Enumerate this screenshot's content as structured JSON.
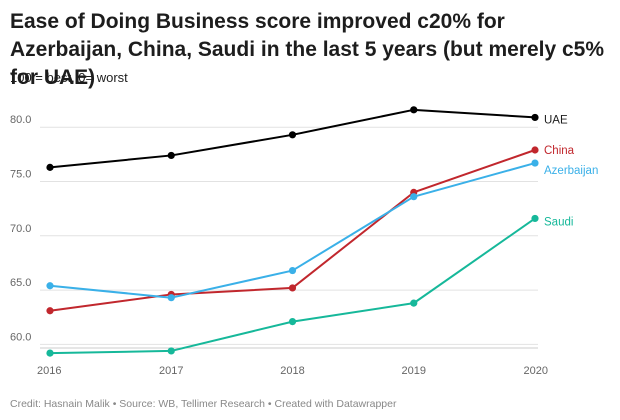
{
  "title": "Ease of Doing Business score improved c20% for Azerbaijan, China, Saudi in the last 5 years (but merely c5% for UAE)",
  "subtitle": "100 = best, 0= worst",
  "footer": "Credit: Hasnain Malik • Source: WB, Tellimer Research • Created with Datawrapper",
  "chart_data": {
    "type": "line",
    "title": "Ease of Doing Business score improved c20% for Azerbaijan, China, Saudi in the last 5 years (but merely c5% for UAE)",
    "subtitle": "100 = best, 0= worst",
    "x": [
      "2016",
      "2017",
      "2018",
      "2019",
      "2020"
    ],
    "ylim": [
      58.5,
      81.5
    ],
    "yticks": [
      "60.0",
      "65.0",
      "70.0",
      "75.0",
      "80.0"
    ],
    "grid": true,
    "legend": "direct labels at line ends",
    "series": [
      {
        "name": "UAE",
        "color": "#000000",
        "values": [
          76.3,
          77.4,
          79.3,
          81.6,
          80.9
        ]
      },
      {
        "name": "China",
        "color": "#c1272d",
        "values": [
          63.1,
          64.6,
          65.2,
          74.0,
          77.9
        ]
      },
      {
        "name": "Azerbaijan",
        "color": "#3ab0e8",
        "values": [
          65.4,
          64.3,
          66.8,
          73.6,
          76.7
        ]
      },
      {
        "name": "Saudi",
        "color": "#16b89a",
        "values": [
          59.2,
          59.4,
          62.1,
          63.8,
          71.6
        ]
      }
    ]
  }
}
